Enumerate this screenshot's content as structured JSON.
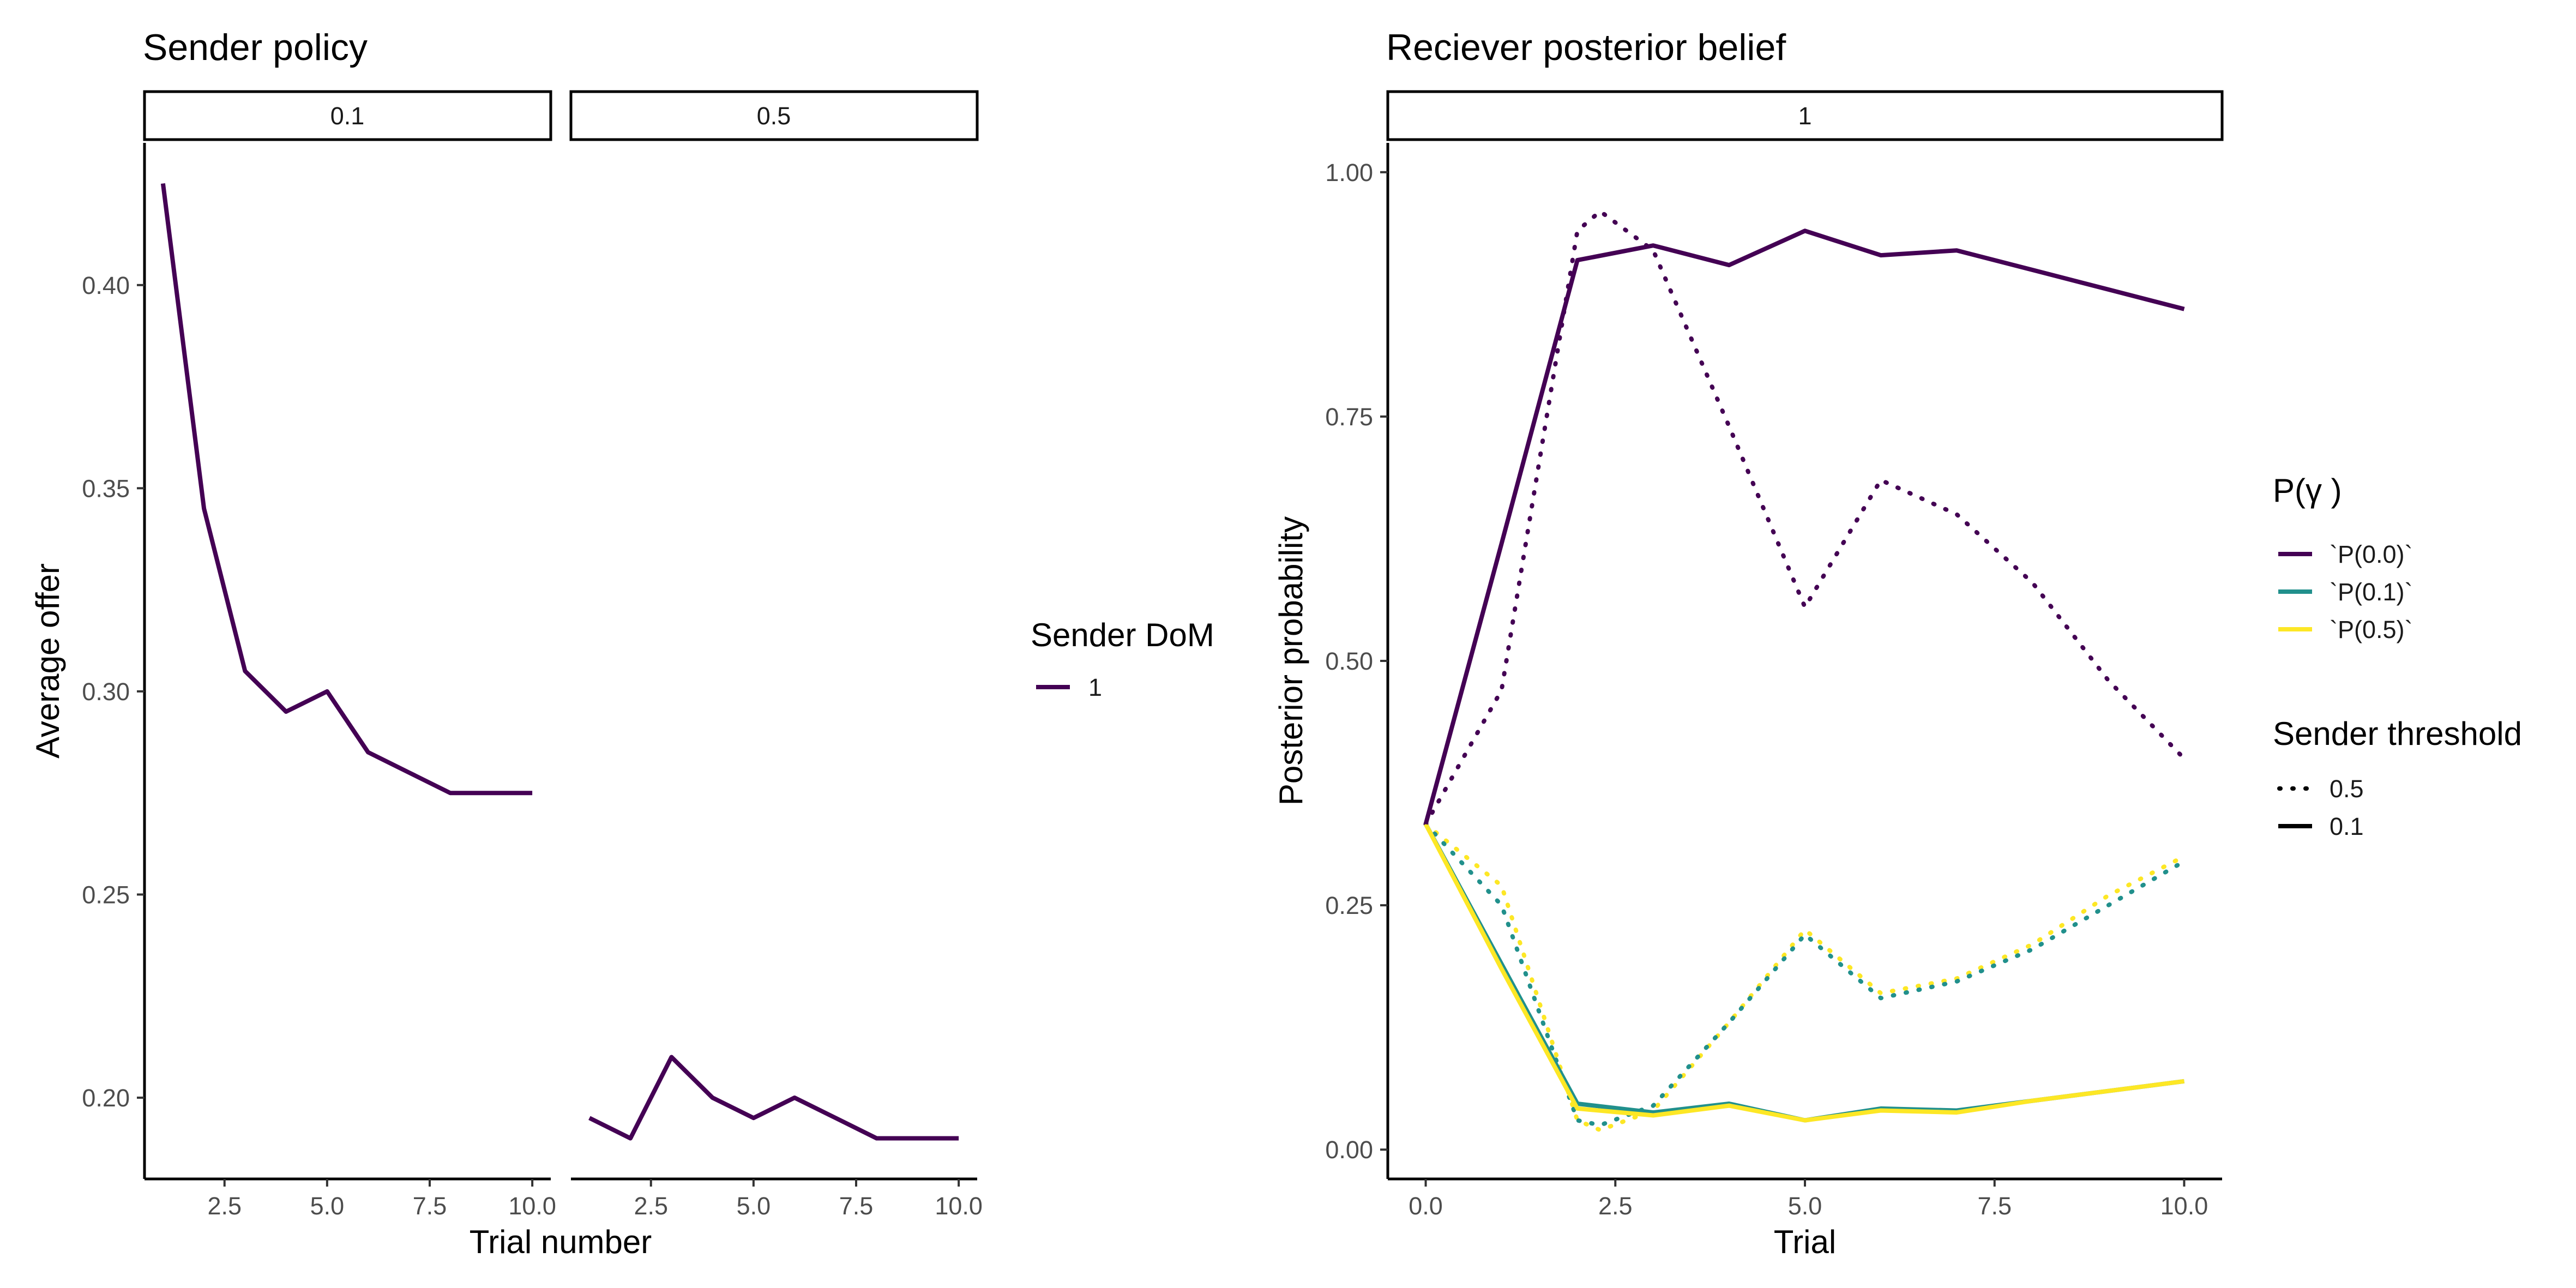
{
  "colors": {
    "p00": "#440154",
    "p01": "#21908C",
    "p05": "#FDE725",
    "dom1": "#440154"
  },
  "chart_data": [
    {
      "type": "line",
      "title": "Sender policy",
      "xlabel": "Trial number",
      "ylabel": "Average offer",
      "ylim": [
        0.18,
        0.435
      ],
      "xlim": [
        0.55,
        10.45
      ],
      "yticks": [
        "0.20",
        "0.25",
        "0.30",
        "0.35",
        "0.40"
      ],
      "xticks": [
        "2.5",
        "5.0",
        "7.5",
        "10.0"
      ],
      "grid": false,
      "legend": {
        "title": "Sender DoM",
        "position": "right",
        "entries": [
          {
            "label": "1",
            "color": "#440154"
          }
        ]
      },
      "facets": [
        {
          "strip": "0.1",
          "series": [
            {
              "legend_key": "1",
              "x": [
                1,
                2,
                3,
                4,
                5,
                6,
                7,
                8,
                9,
                10
              ],
              "y": [
                0.425,
                0.345,
                0.305,
                0.295,
                0.3,
                0.285,
                0.28,
                0.275,
                0.275,
                0.275
              ]
            }
          ]
        },
        {
          "strip": "0.5",
          "series": [
            {
              "legend_key": "1",
              "x": [
                1,
                2,
                3,
                4,
                5,
                6,
                7,
                8,
                9,
                10
              ],
              "y": [
                0.195,
                0.19,
                0.21,
                0.2,
                0.195,
                0.2,
                0.195,
                0.19,
                0.19,
                0.19
              ]
            }
          ]
        }
      ]
    },
    {
      "type": "line",
      "title": "Reciever posterior belief",
      "xlabel": "Trial",
      "ylabel": "Posterior probability",
      "ylim": [
        -0.03,
        1.03
      ],
      "xlim": [
        -0.5,
        10.5
      ],
      "yticks": [
        "0.00",
        "0.25",
        "0.50",
        "0.75",
        "1.00"
      ],
      "xticks": [
        "0.0",
        "2.5",
        "5.0",
        "7.5",
        "10.0"
      ],
      "grid": false,
      "legend": {
        "title": "P(γ )",
        "position": "right",
        "entries": [
          {
            "label": "`P(0.0)`",
            "color": "#440154"
          },
          {
            "label": "`P(0.1)`",
            "color": "#21908C"
          },
          {
            "label": "`P(0.5)`",
            "color": "#FDE725"
          }
        ]
      },
      "legend2": {
        "title": "Sender threshold",
        "position": "right",
        "entries": [
          {
            "label": "0.5",
            "linetype": "dotted"
          },
          {
            "label": "0.1",
            "linetype": "solid"
          }
        ]
      },
      "facets": [
        {
          "strip": "1",
          "series": [
            {
              "legend_key": "`P(0.5)`",
              "threshold": "0.5",
              "linetype": "dotted",
              "x": [
                0,
                1,
                2,
                2.3,
                3,
                4,
                5,
                6,
                7,
                8,
                9,
                10
              ],
              "y": [
                0.333,
                0.27,
                0.03,
                0.02,
                0.04,
                0.13,
                0.225,
                0.16,
                0.175,
                0.21,
                0.26,
                0.3
              ]
            },
            {
              "legend_key": "`P(0.1)`",
              "threshold": "0.5",
              "linetype": "dotted",
              "x": [
                0,
                1,
                2,
                2.3,
                3,
                4,
                5,
                6,
                7,
                8,
                9,
                10
              ],
              "y": [
                0.333,
                0.25,
                0.03,
                0.025,
                0.045,
                0.13,
                0.22,
                0.155,
                0.172,
                0.205,
                0.25,
                0.295
              ]
            },
            {
              "legend_key": "`P(0.0)`",
              "threshold": "0.5",
              "linetype": "dotted",
              "x": [
                0,
                1,
                2,
                2.3,
                3,
                4,
                5,
                6,
                7,
                8,
                9,
                10
              ],
              "y": [
                0.333,
                0.47,
                0.94,
                0.96,
                0.92,
                0.74,
                0.555,
                0.685,
                0.65,
                0.58,
                0.48,
                0.4
              ]
            },
            {
              "legend_key": "`P(0.1)`",
              "threshold": "0.1",
              "linetype": "solid",
              "x": [
                0,
                1,
                2,
                3,
                4,
                5,
                6,
                7,
                8,
                9,
                10
              ],
              "y": [
                0.333,
                0.19,
                0.047,
                0.038,
                0.047,
                0.03,
                0.042,
                0.04,
                0.05,
                0.06,
                0.07
              ]
            },
            {
              "legend_key": "`P(0.5)`",
              "threshold": "0.1",
              "linetype": "solid",
              "x": [
                0,
                1,
                2,
                3,
                4,
                5,
                6,
                7,
                8,
                9,
                10
              ],
              "y": [
                0.333,
                0.185,
                0.042,
                0.035,
                0.045,
                0.03,
                0.04,
                0.038,
                0.05,
                0.06,
                0.07
              ]
            },
            {
              "legend_key": "`P(0.0)`",
              "threshold": "0.1",
              "linetype": "solid",
              "x": [
                0,
                1,
                2,
                3,
                4,
                5,
                6,
                7,
                8,
                9,
                10
              ],
              "y": [
                0.333,
                0.62,
                0.91,
                0.925,
                0.905,
                0.94,
                0.915,
                0.92,
                0.9,
                0.88,
                0.86
              ]
            }
          ]
        }
      ]
    }
  ]
}
